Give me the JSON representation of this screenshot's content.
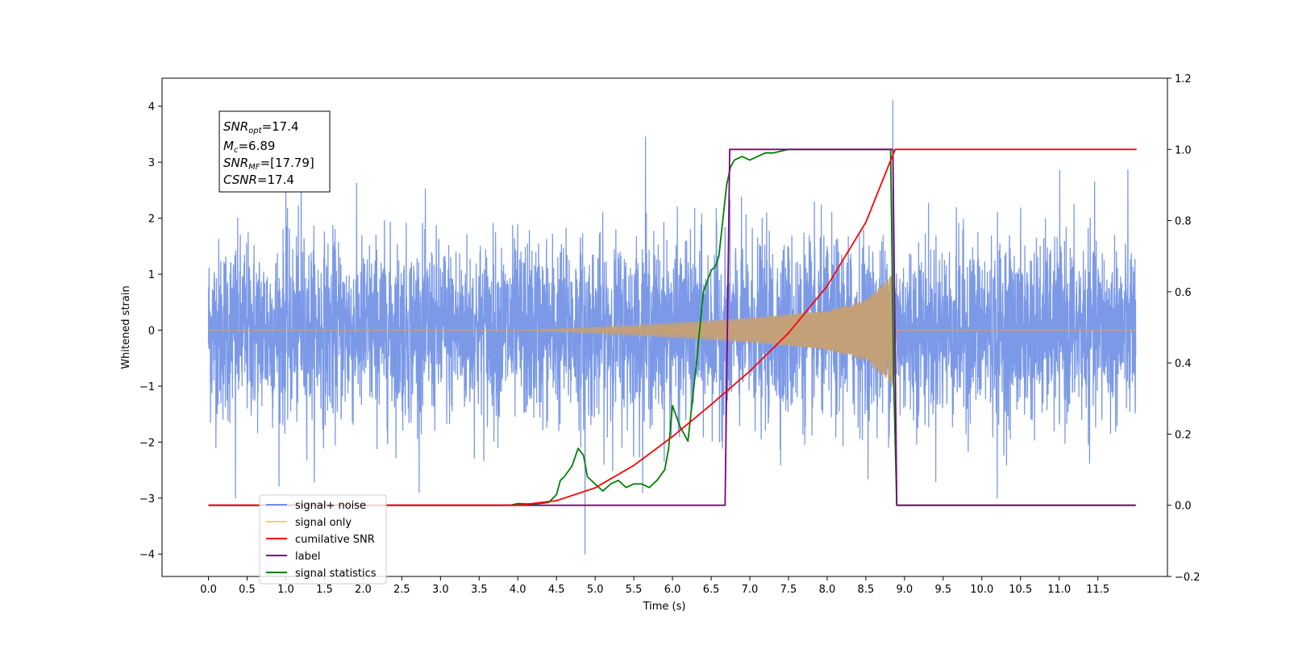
{
  "chart_data": {
    "type": "line",
    "xlabel": "Time (s)",
    "ylabel_left": "Whitened strain",
    "xlim": [
      -0.6,
      12.4
    ],
    "ylim_left": [
      -4.4,
      4.5
    ],
    "ylim_right": [
      -0.2,
      1.2
    ],
    "x_ticks": [
      "0.0",
      "0.5",
      "1.0",
      "1.5",
      "2.0",
      "2.5",
      "3.0",
      "3.5",
      "4.0",
      "4.5",
      "5.0",
      "5.5",
      "6.0",
      "6.5",
      "7.0",
      "7.5",
      "8.0",
      "8.5",
      "9.0",
      "9.5",
      "10.0",
      "10.5",
      "11.0",
      "11.5"
    ],
    "y_left_ticks": [
      "−4",
      "−3",
      "−2",
      "−1",
      "0",
      "1",
      "2",
      "3",
      "4"
    ],
    "y_right_ticks": [
      "−0.2",
      "0.0",
      "0.2",
      "0.4",
      "0.6",
      "0.8",
      "1.0",
      "1.2"
    ],
    "annotation": {
      "snr_opt_base": "SNR",
      "snr_opt_sub": "opt",
      "snr_opt_value": "=17.4",
      "mc_base": "M",
      "mc_sub": "c",
      "mc_value": "=6.89",
      "snr_mf_base": "SNR",
      "snr_mf_sub": "MF",
      "snr_mf_value": "=[17.79]",
      "csnr_base": "CSNR",
      "csnr_value": "=17.4"
    },
    "legend": {
      "placement": "lower-left",
      "entries": [
        {
          "label": "signal+ noise",
          "color": "#6f8fe6"
        },
        {
          "label": "signal only",
          "color": "#ffc870"
        },
        {
          "label": "cumilative SNR",
          "color": "#ff0000"
        },
        {
          "label": "label",
          "color": "#800080"
        },
        {
          "label": "signal statistics",
          "color": "#008000"
        }
      ]
    },
    "series": [
      {
        "name": "signal+ noise",
        "axis": "left",
        "color": "#7494e6",
        "kind": "noise",
        "x_range": [
          0.0,
          11.99
        ],
        "amplitude_sigma": 0.8,
        "peaks": [
          [
            0.35,
            -3.0
          ],
          [
            1.0,
            2.6
          ],
          [
            1.2,
            2.9
          ],
          [
            4.87,
            -4.0
          ],
          [
            5.65,
            3.45
          ],
          [
            8.85,
            4.1
          ],
          [
            10.2,
            -3.0
          ]
        ]
      },
      {
        "name": "signal only",
        "axis": "left",
        "color": "#c4a078",
        "kind": "chirp",
        "start": 4.0,
        "merger": 8.85,
        "end": 8.9,
        "envelope": [
          [
            4.0,
            0.0
          ],
          [
            5.0,
            0.05
          ],
          [
            6.0,
            0.13
          ],
          [
            7.0,
            0.22
          ],
          [
            8.0,
            0.35
          ],
          [
            8.5,
            0.55
          ],
          [
            8.85,
            1.0
          ]
        ]
      },
      {
        "name": "cumilative SNR",
        "axis": "right",
        "x": [
          0.0,
          4.0,
          4.5,
          5.0,
          5.5,
          6.0,
          6.5,
          7.0,
          7.5,
          8.0,
          8.5,
          8.85,
          8.88,
          9.0,
          12.0
        ],
        "y": [
          0.0,
          0.0,
          0.013,
          0.049,
          0.112,
          0.193,
          0.283,
          0.377,
          0.484,
          0.616,
          0.795,
          0.985,
          1.0,
          1.0,
          1.0
        ]
      },
      {
        "name": "label",
        "axis": "right",
        "x": [
          0.0,
          6.68,
          6.74,
          8.85,
          8.9,
          11.99
        ],
        "y": [
          0.0,
          0.0,
          1.0,
          1.0,
          0.0,
          0.0
        ]
      },
      {
        "name": "signal statistics",
        "axis": "right",
        "x": [
          0.0,
          3.9,
          4.0,
          4.2,
          4.4,
          4.5,
          4.55,
          4.6,
          4.7,
          4.78,
          4.85,
          4.9,
          5.0,
          5.1,
          5.2,
          5.3,
          5.4,
          5.5,
          5.6,
          5.7,
          5.8,
          5.9,
          5.95,
          6.0,
          6.1,
          6.2,
          6.3,
          6.4,
          6.5,
          6.55,
          6.6,
          6.65,
          6.7,
          6.75,
          6.8,
          6.9,
          7.0,
          7.1,
          7.2,
          7.3,
          7.5,
          8.0,
          8.5,
          8.82,
          8.86,
          8.9,
          8.95,
          11.99
        ],
        "y": [
          0.0,
          0.0,
          0.005,
          0.003,
          0.008,
          0.03,
          0.07,
          0.08,
          0.11,
          0.16,
          0.14,
          0.08,
          0.06,
          0.04,
          0.06,
          0.07,
          0.05,
          0.06,
          0.06,
          0.05,
          0.07,
          0.1,
          0.16,
          0.28,
          0.22,
          0.18,
          0.38,
          0.6,
          0.66,
          0.67,
          0.7,
          0.8,
          0.9,
          0.95,
          0.97,
          0.98,
          0.97,
          0.98,
          0.99,
          0.99,
          1.0,
          1.0,
          1.0,
          1.0,
          0.35,
          0.0,
          0.0,
          0.0
        ]
      }
    ]
  }
}
